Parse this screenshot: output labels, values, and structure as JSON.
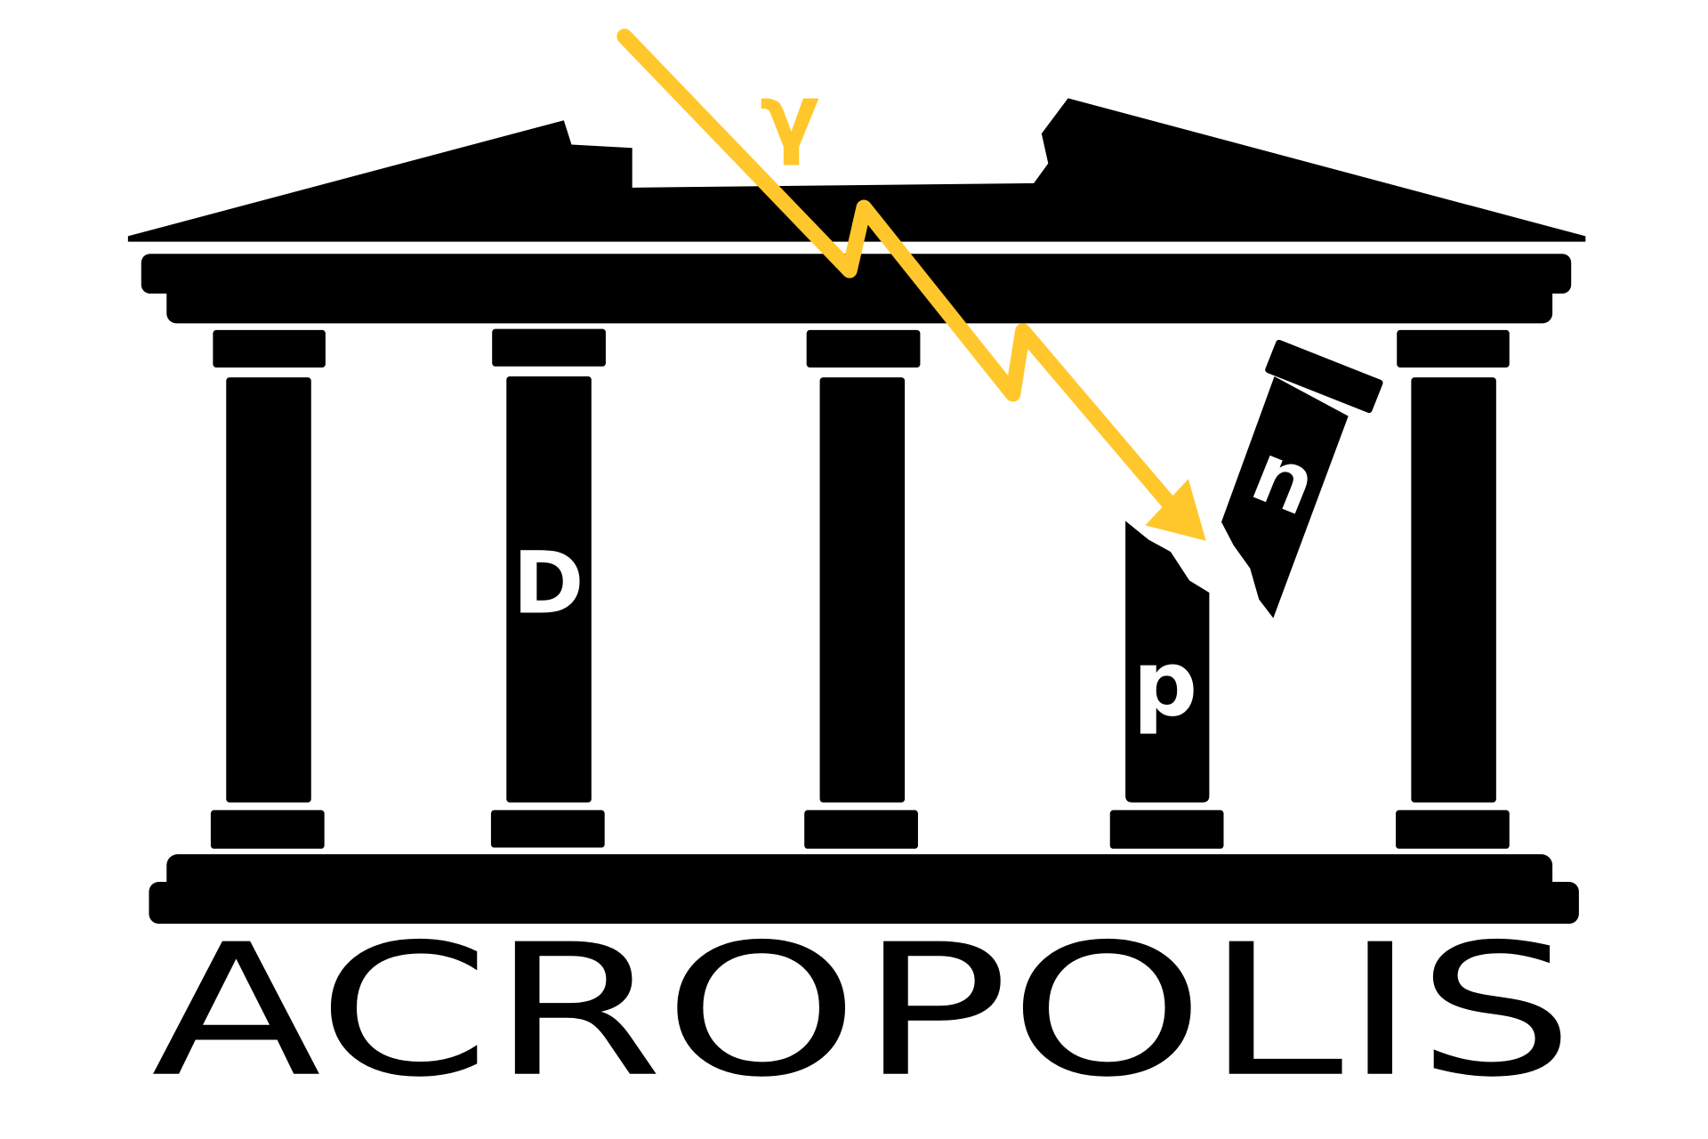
{
  "logo": {
    "title": "ACROPOLIS",
    "symbols": {
      "gamma": "γ",
      "d": "D",
      "p": "p",
      "n": "n"
    },
    "colors": {
      "structure": "#000000",
      "ray": "#FFC72C",
      "symbol_on_column": "#FFFFFF",
      "background": "#FFFFFF"
    }
  }
}
